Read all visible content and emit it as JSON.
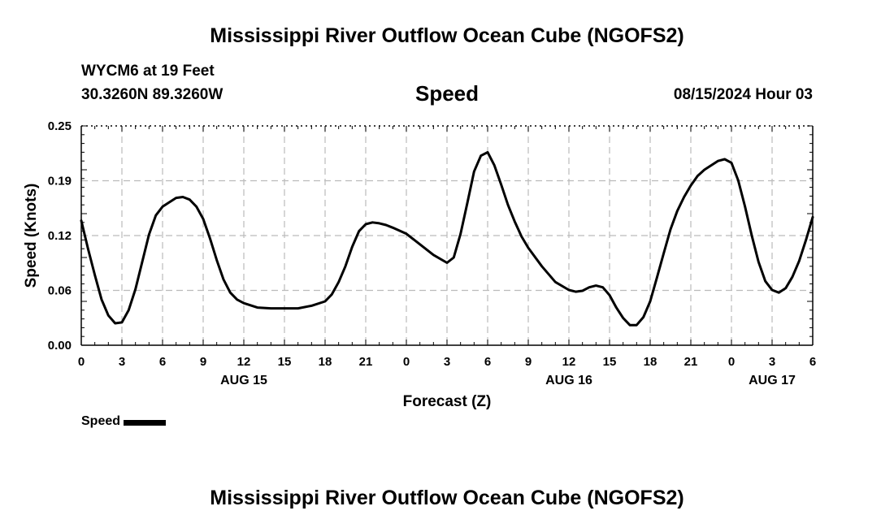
{
  "header": {
    "title": "Mississippi River Outflow Ocean Cube (NGOFS2)",
    "station": "WYCM6 at 19 Feet",
    "coordinates": "30.3260N  89.3260W",
    "subtitle": "Speed",
    "timestamp": "08/15/2024 Hour 03"
  },
  "footer": {
    "title": "Mississippi River Outflow Ocean Cube (NGOFS2)"
  },
  "legend": {
    "label": "Speed",
    "color": "#000000"
  },
  "chart_data": {
    "type": "line",
    "title": "Speed",
    "xlabel": "Forecast (Z)",
    "ylabel": "Speed (Knots)",
    "ylim": [
      0.0,
      0.25
    ],
    "xlim": [
      0,
      54
    ],
    "yticks": [
      "0.00",
      "0.06",
      "0.12",
      "0.19",
      "0.25"
    ],
    "ytick_values": [
      0.0,
      0.0625,
      0.125,
      0.1875,
      0.25
    ],
    "xticks": [
      {
        "x": 0,
        "label": "0"
      },
      {
        "x": 3,
        "label": "3"
      },
      {
        "x": 6,
        "label": "6"
      },
      {
        "x": 9,
        "label": "9"
      },
      {
        "x": 12,
        "label": "12"
      },
      {
        "x": 15,
        "label": "15"
      },
      {
        "x": 18,
        "label": "18"
      },
      {
        "x": 21,
        "label": "21"
      },
      {
        "x": 24,
        "label": "0"
      },
      {
        "x": 27,
        "label": "3"
      },
      {
        "x": 30,
        "label": "6"
      },
      {
        "x": 33,
        "label": "9"
      },
      {
        "x": 36,
        "label": "12"
      },
      {
        "x": 39,
        "label": "15"
      },
      {
        "x": 42,
        "label": "18"
      },
      {
        "x": 45,
        "label": "21"
      },
      {
        "x": 48,
        "label": "0"
      },
      {
        "x": 51,
        "label": "3"
      },
      {
        "x": 54,
        "label": "6"
      }
    ],
    "date_labels": [
      {
        "x": 12,
        "label": "AUG 15"
      },
      {
        "x": 36,
        "label": "AUG 16"
      },
      {
        "x": 51,
        "label": "AUG 17"
      }
    ],
    "grid": true,
    "legend_position": "bottom-left",
    "series": [
      {
        "name": "Speed",
        "color": "#000000",
        "x": [
          0,
          0.5,
          1,
          1.5,
          2,
          2.5,
          3,
          3.5,
          4,
          4.5,
          5,
          5.5,
          6,
          6.5,
          7,
          7.5,
          8,
          8.5,
          9,
          9.5,
          10,
          10.5,
          11,
          11.5,
          12,
          13,
          14,
          15,
          16,
          17,
          18,
          18.5,
          19,
          19.5,
          20,
          20.5,
          21,
          21.5,
          22,
          22.5,
          23,
          24,
          25,
          26,
          27,
          27.5,
          28,
          28.5,
          29,
          29.5,
          30,
          30.5,
          31,
          31.5,
          32,
          32.5,
          33,
          34,
          35,
          36,
          36.5,
          37,
          37.5,
          38,
          38.5,
          39,
          39.5,
          40,
          40.5,
          41,
          41.5,
          42,
          42.5,
          43,
          43.5,
          44,
          44.5,
          45,
          45.5,
          46,
          46.5,
          47,
          47.5,
          48,
          48.5,
          49,
          49.5,
          50,
          50.5,
          51,
          51.5,
          52,
          52.5,
          53,
          53.5,
          54
        ],
        "values": [
          0.142,
          0.11,
          0.08,
          0.052,
          0.034,
          0.025,
          0.026,
          0.04,
          0.064,
          0.095,
          0.126,
          0.148,
          0.158,
          0.163,
          0.168,
          0.169,
          0.166,
          0.158,
          0.144,
          0.122,
          0.097,
          0.075,
          0.06,
          0.052,
          0.048,
          0.043,
          0.042,
          0.042,
          0.042,
          0.045,
          0.05,
          0.058,
          0.072,
          0.09,
          0.112,
          0.13,
          0.138,
          0.14,
          0.139,
          0.137,
          0.134,
          0.127,
          0.115,
          0.103,
          0.094,
          0.1,
          0.127,
          0.162,
          0.198,
          0.216,
          0.22,
          0.205,
          0.183,
          0.16,
          0.141,
          0.124,
          0.111,
          0.09,
          0.072,
          0.063,
          0.061,
          0.062,
          0.066,
          0.068,
          0.066,
          0.057,
          0.043,
          0.031,
          0.023,
          0.023,
          0.032,
          0.05,
          0.077,
          0.105,
          0.132,
          0.153,
          0.169,
          0.182,
          0.193,
          0.2,
          0.205,
          0.21,
          0.212,
          0.208,
          0.188,
          0.158,
          0.125,
          0.095,
          0.073,
          0.063,
          0.06,
          0.065,
          0.078,
          0.096,
          0.12,
          0.146
        ]
      }
    ]
  }
}
